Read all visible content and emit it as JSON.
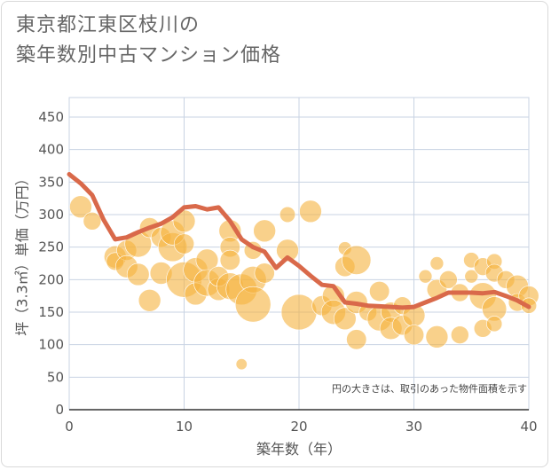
{
  "title_lines": [
    "東京都江東区枝川の",
    "築年数別中古マンション価格"
  ],
  "chart_data": {
    "type": "scatter",
    "xlabel": "築年数（年）",
    "ylabel": "坪（3.3㎡）単価（万円）",
    "xlim": [
      0,
      40
    ],
    "ylim": [
      0,
      480
    ],
    "xticks": [
      0,
      10,
      20,
      30,
      40
    ],
    "yticks": [
      0,
      50,
      100,
      150,
      200,
      250,
      300,
      350,
      400,
      450
    ],
    "grid": true,
    "annotation": "円の大きさは、取引のあった物件面積を示す",
    "colors": {
      "bubble": "#f5b23e",
      "line": "#d9694a",
      "grid": "#c8d3e3"
    },
    "bubbles": [
      {
        "x": 1,
        "y": 312,
        "size": 10
      },
      {
        "x": 2,
        "y": 290,
        "size": 8
      },
      {
        "x": 4,
        "y": 235,
        "size": 10
      },
      {
        "x": 4,
        "y": 228,
        "size": 8
      },
      {
        "x": 5,
        "y": 245,
        "size": 9
      },
      {
        "x": 5,
        "y": 220,
        "size": 10
      },
      {
        "x": 6,
        "y": 255,
        "size": 12
      },
      {
        "x": 6,
        "y": 208,
        "size": 10
      },
      {
        "x": 7,
        "y": 280,
        "size": 9
      },
      {
        "x": 7,
        "y": 168,
        "size": 10
      },
      {
        "x": 8,
        "y": 265,
        "size": 9
      },
      {
        "x": 8,
        "y": 210,
        "size": 10
      },
      {
        "x": 9,
        "y": 250,
        "size": 13
      },
      {
        "x": 9,
        "y": 272,
        "size": 11
      },
      {
        "x": 10,
        "y": 290,
        "size": 10
      },
      {
        "x": 10,
        "y": 255,
        "size": 9
      },
      {
        "x": 10,
        "y": 200,
        "size": 16
      },
      {
        "x": 11,
        "y": 215,
        "size": 11
      },
      {
        "x": 11,
        "y": 178,
        "size": 10
      },
      {
        "x": 12,
        "y": 230,
        "size": 10
      },
      {
        "x": 12,
        "y": 195,
        "size": 12
      },
      {
        "x": 13,
        "y": 185,
        "size": 10
      },
      {
        "x": 13,
        "y": 205,
        "size": 9
      },
      {
        "x": 14,
        "y": 275,
        "size": 10
      },
      {
        "x": 14,
        "y": 250,
        "size": 9
      },
      {
        "x": 14,
        "y": 230,
        "size": 9
      },
      {
        "x": 14,
        "y": 190,
        "size": 12
      },
      {
        "x": 15,
        "y": 185,
        "size": 14
      },
      {
        "x": 15,
        "y": 70,
        "size": 5
      },
      {
        "x": 16,
        "y": 245,
        "size": 8
      },
      {
        "x": 16,
        "y": 200,
        "size": 12
      },
      {
        "x": 16,
        "y": 162,
        "size": 16
      },
      {
        "x": 17,
        "y": 275,
        "size": 10
      },
      {
        "x": 17,
        "y": 210,
        "size": 9
      },
      {
        "x": 19,
        "y": 245,
        "size": 10
      },
      {
        "x": 19,
        "y": 300,
        "size": 7
      },
      {
        "x": 21,
        "y": 305,
        "size": 10
      },
      {
        "x": 20,
        "y": 150,
        "size": 16
      },
      {
        "x": 22,
        "y": 160,
        "size": 9
      },
      {
        "x": 23,
        "y": 175,
        "size": 10
      },
      {
        "x": 23,
        "y": 150,
        "size": 11
      },
      {
        "x": 24,
        "y": 248,
        "size": 6
      },
      {
        "x": 24,
        "y": 220,
        "size": 9
      },
      {
        "x": 24,
        "y": 140,
        "size": 10
      },
      {
        "x": 25,
        "y": 230,
        "size": 13
      },
      {
        "x": 25,
        "y": 165,
        "size": 10
      },
      {
        "x": 25,
        "y": 108,
        "size": 9
      },
      {
        "x": 26,
        "y": 150,
        "size": 8
      },
      {
        "x": 27,
        "y": 182,
        "size": 9
      },
      {
        "x": 27,
        "y": 140,
        "size": 11
      },
      {
        "x": 28,
        "y": 150,
        "size": 9
      },
      {
        "x": 28,
        "y": 125,
        "size": 10
      },
      {
        "x": 29,
        "y": 160,
        "size": 8
      },
      {
        "x": 29,
        "y": 130,
        "size": 9
      },
      {
        "x": 30,
        "y": 145,
        "size": 10
      },
      {
        "x": 30,
        "y": 115,
        "size": 9
      },
      {
        "x": 31,
        "y": 205,
        "size": 6
      },
      {
        "x": 32,
        "y": 225,
        "size": 6
      },
      {
        "x": 32,
        "y": 185,
        "size": 9
      },
      {
        "x": 32,
        "y": 112,
        "size": 10
      },
      {
        "x": 33,
        "y": 200,
        "size": 8
      },
      {
        "x": 34,
        "y": 180,
        "size": 8
      },
      {
        "x": 34,
        "y": 115,
        "size": 8
      },
      {
        "x": 35,
        "y": 230,
        "size": 7
      },
      {
        "x": 35,
        "y": 205,
        "size": 6
      },
      {
        "x": 36,
        "y": 220,
        "size": 8
      },
      {
        "x": 36,
        "y": 175,
        "size": 12
      },
      {
        "x": 36,
        "y": 125,
        "size": 8
      },
      {
        "x": 37,
        "y": 228,
        "size": 7
      },
      {
        "x": 37,
        "y": 210,
        "size": 8
      },
      {
        "x": 37,
        "y": 155,
        "size": 11
      },
      {
        "x": 37,
        "y": 132,
        "size": 7
      },
      {
        "x": 38,
        "y": 200,
        "size": 8
      },
      {
        "x": 39,
        "y": 190,
        "size": 10
      },
      {
        "x": 39,
        "y": 165,
        "size": 8
      },
      {
        "x": 40,
        "y": 175,
        "size": 9
      },
      {
        "x": 40,
        "y": 160,
        "size": 7
      }
    ],
    "trend": {
      "x": [
        0,
        1,
        2,
        3,
        4,
        5,
        6,
        7,
        8,
        9,
        10,
        11,
        12,
        13,
        14,
        15,
        16,
        17,
        18,
        19,
        20,
        21,
        22,
        23,
        24,
        25,
        26,
        27,
        28,
        29,
        30,
        31,
        32,
        33,
        34,
        35,
        36,
        37,
        38,
        39,
        40
      ],
      "y": [
        362,
        348,
        330,
        292,
        262,
        265,
        273,
        280,
        286,
        296,
        311,
        313,
        308,
        311,
        290,
        262,
        250,
        243,
        218,
        234,
        221,
        206,
        192,
        190,
        165,
        163,
        160,
        159,
        158,
        157,
        158,
        165,
        172,
        180,
        180,
        180,
        179,
        181,
        175,
        168,
        158
      ]
    }
  }
}
